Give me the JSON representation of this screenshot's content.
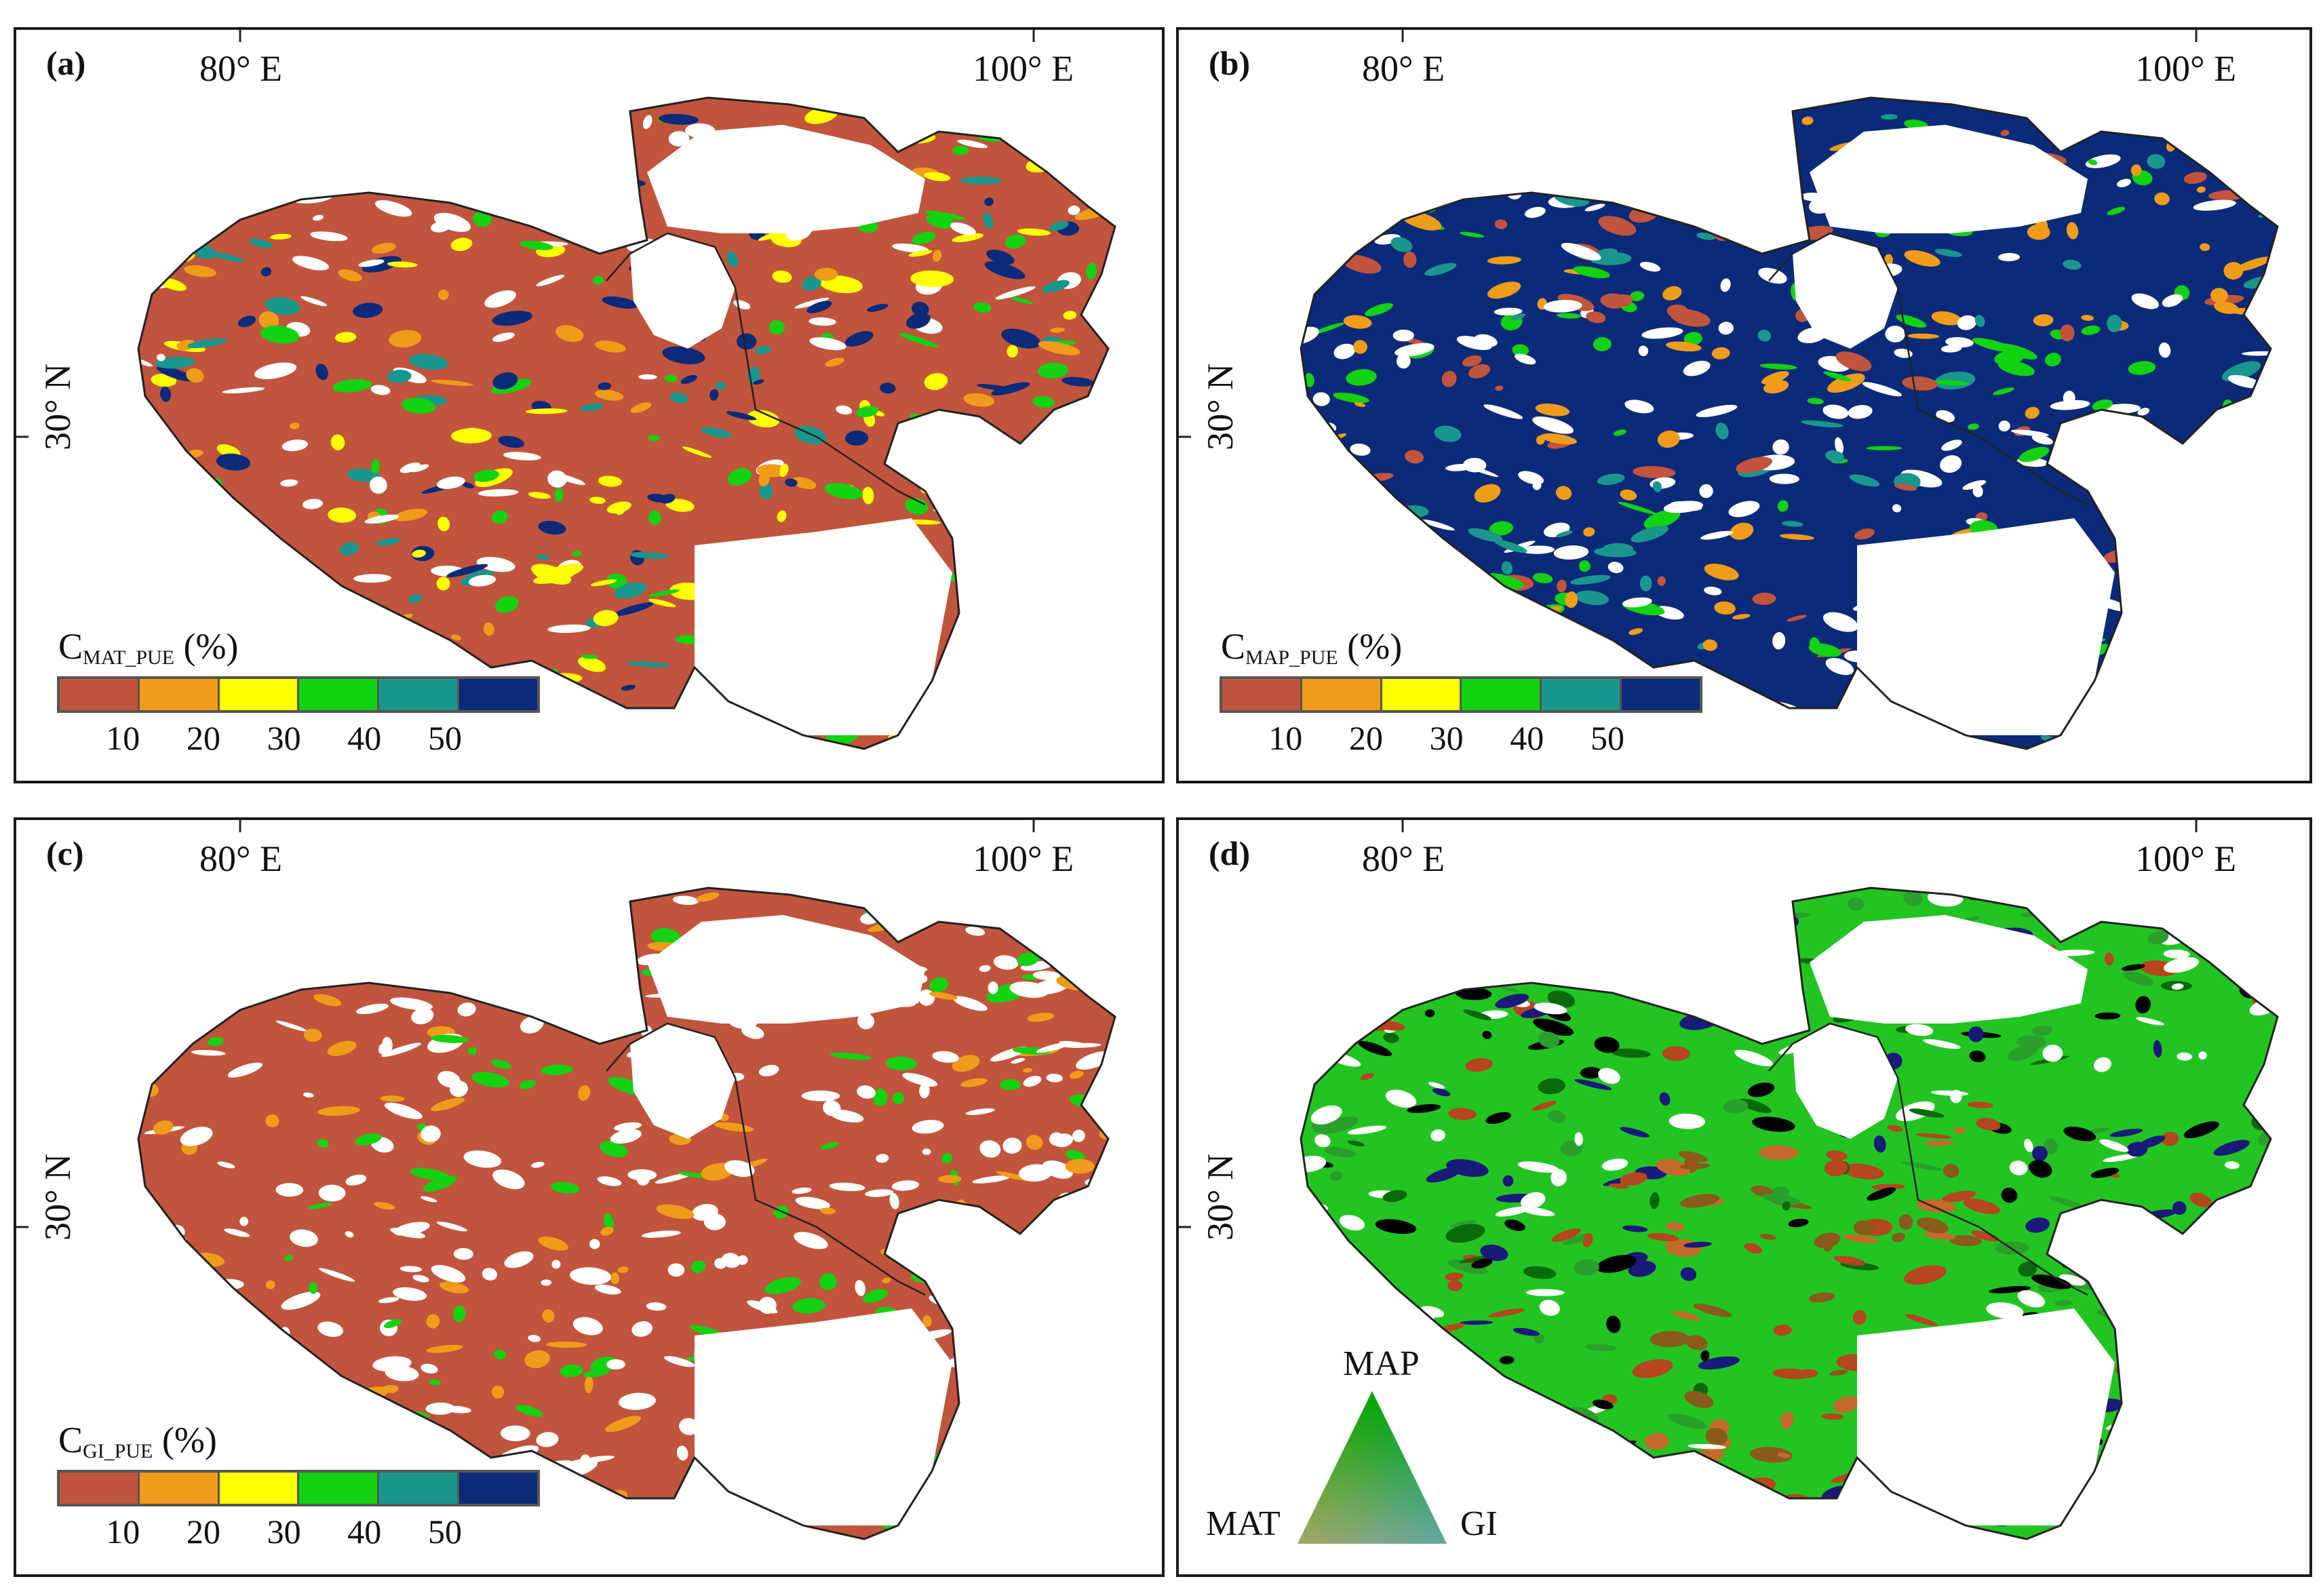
{
  "panels": [
    {
      "id": "a",
      "label": "(a)",
      "lon_left": "80° E",
      "lon_right": "100° E",
      "lat": "30° N",
      "legend": {
        "title_main": "C",
        "title_sub": "MAT_PUE",
        "title_unit": " (%)",
        "ticks": [
          "10",
          "20",
          "30",
          "40",
          "50"
        ]
      },
      "dominant_color": "#c1543c"
    },
    {
      "id": "b",
      "label": "(b)",
      "lon_left": "80° E",
      "lon_right": "100° E",
      "lat": "30° N",
      "legend": {
        "title_main": "C",
        "title_sub": "MAP_PUE",
        "title_unit": " (%)",
        "ticks": [
          "10",
          "20",
          "30",
          "40",
          "50"
        ]
      },
      "dominant_color": "#0b2a7a"
    },
    {
      "id": "c",
      "label": "(c)",
      "lon_left": "80° E",
      "lon_right": "100° E",
      "lat": "30° N",
      "legend": {
        "title_main": "C",
        "title_sub": "GI_PUE",
        "title_unit": " (%)",
        "ticks": [
          "10",
          "20",
          "30",
          "40",
          "50"
        ]
      },
      "dominant_color": "#c1543c"
    },
    {
      "id": "d",
      "label": "(d)",
      "lon_left": "80° E",
      "lon_right": "100° E",
      "lat": "30° N",
      "ternary": {
        "top": "MAP",
        "left": "MAT",
        "right": "GI"
      },
      "dominant_color": "#22c422"
    }
  ],
  "legend_colors": [
    "#c1543c",
    "#ef9c1a",
    "#ffff00",
    "#12d212",
    "#1a978c",
    "#0b2a7a"
  ]
}
